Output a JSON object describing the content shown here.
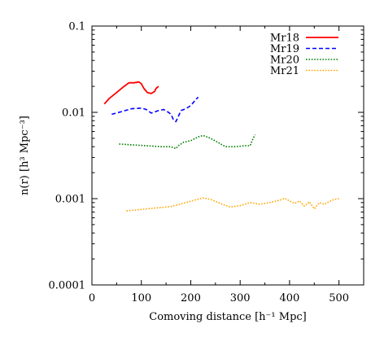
{
  "chart_data": {
    "type": "line",
    "xlabel": "Comoving distance [h⁻¹ Mpc]",
    "ylabel": "n(r) [h³ Mpc⁻³]",
    "xlim": [
      0,
      550
    ],
    "ylim": [
      0.0001,
      0.1
    ],
    "yscale": "log",
    "x_ticks": [
      "0",
      "100",
      "200",
      "300",
      "400",
      "500"
    ],
    "y_ticks": [
      "0.0001",
      "0.001",
      "0.01",
      "0.1"
    ],
    "grid": false,
    "legend_position": "top-right",
    "series": [
      {
        "name": "Mr18",
        "color": "#ff0000",
        "style": "solid",
        "x": [
          25,
          35,
          50,
          65,
          75,
          85,
          95,
          100,
          105,
          112,
          120,
          127,
          130,
          135
        ],
        "y": [
          0.0125,
          0.0145,
          0.017,
          0.02,
          0.022,
          0.022,
          0.0225,
          0.0215,
          0.019,
          0.017,
          0.0165,
          0.0175,
          0.019,
          0.02
        ]
      },
      {
        "name": "Mr19",
        "color": "#0000ff",
        "style": "dashed",
        "x": [
          40,
          60,
          80,
          100,
          110,
          120,
          135,
          145,
          155,
          160,
          165,
          170,
          175,
          180,
          190,
          200,
          210,
          215
        ],
        "y": [
          0.0095,
          0.0102,
          0.011,
          0.0112,
          0.0108,
          0.0098,
          0.0105,
          0.0108,
          0.01,
          0.0095,
          0.0082,
          0.0078,
          0.009,
          0.0105,
          0.011,
          0.012,
          0.014,
          0.015
        ]
      },
      {
        "name": "Mr20",
        "color": "#008000",
        "style": "dotted",
        "x": [
          55,
          80,
          110,
          140,
          160,
          170,
          175,
          185,
          200,
          215,
          225,
          240,
          255,
          270,
          290,
          310,
          320,
          325,
          330
        ],
        "y": [
          0.0043,
          0.0042,
          0.0041,
          0.004,
          0.004,
          0.0038,
          0.0041,
          0.0045,
          0.0047,
          0.0052,
          0.0054,
          0.005,
          0.0045,
          0.004,
          0.004,
          0.0041,
          0.0041,
          0.0048,
          0.0055
        ]
      },
      {
        "name": "Mr21",
        "color": "#ffa500",
        "style": "dotted",
        "x": [
          70,
          120,
          160,
          190,
          210,
          225,
          240,
          260,
          280,
          300,
          320,
          340,
          360,
          380,
          390,
          400,
          410,
          420,
          430,
          440,
          450,
          460,
          470,
          480,
          490,
          500
        ],
        "y": [
          0.00072,
          0.00077,
          0.00081,
          0.0009,
          0.00097,
          0.00102,
          0.00098,
          0.00088,
          0.0008,
          0.00083,
          0.0009,
          0.00086,
          0.0009,
          0.00096,
          0.00101,
          0.00094,
          0.00088,
          0.00094,
          0.00082,
          0.00092,
          0.00076,
          0.0009,
          0.00086,
          0.00092,
          0.00098,
          0.001
        ]
      }
    ]
  }
}
